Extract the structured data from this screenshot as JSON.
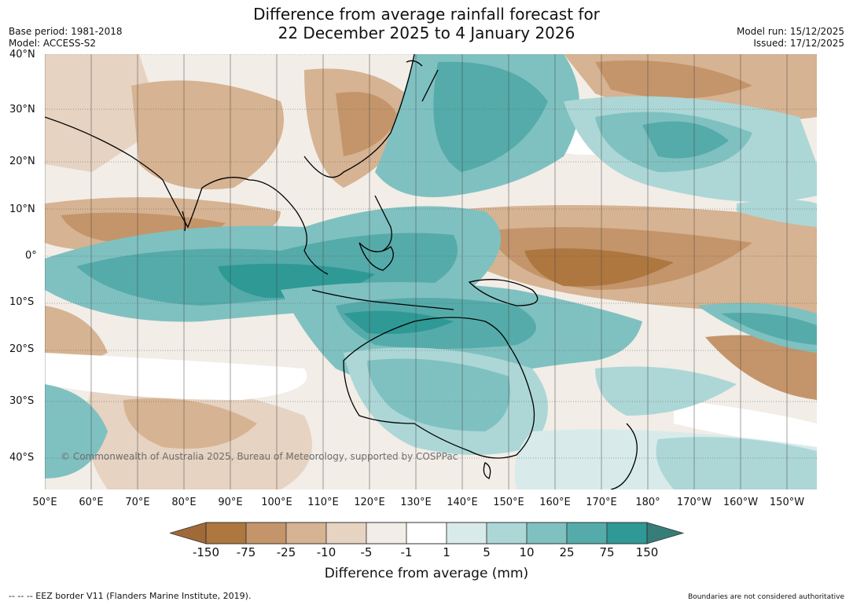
{
  "header": {
    "title_line1": "Difference from average rainfall forecast for",
    "title_line2": "22 December 2025 to 4 January 2026",
    "base_period": "Base period: 1981-2018",
    "model": "Model: ACCESS-S2",
    "model_run": "Model run: 15/12/2025",
    "issued": "Issued: 17/12/2025"
  },
  "map": {
    "lat_labels": [
      "40°N",
      "30°N",
      "20°N",
      "10°N",
      "0°",
      "10°S",
      "20°S",
      "30°S",
      "40°S"
    ],
    "lon_labels": [
      "50°E",
      "60°E",
      "70°E",
      "80°E",
      "90°E",
      "100°E",
      "110°E",
      "120°E",
      "130°E",
      "140°E",
      "150°E",
      "160°E",
      "170°E",
      "180°",
      "170°W",
      "160°W",
      "150°W"
    ],
    "copyright": "© Commonwealth of Australia 2025, Bureau of Meteorology, supported by COSPPac"
  },
  "legend": {
    "ticks": [
      "-150",
      "-75",
      "-25",
      "-10",
      "-5",
      "-1",
      "1",
      "5",
      "10",
      "25",
      "75",
      "150"
    ],
    "title": "Difference from average (mm)",
    "colors": [
      "#a06a38",
      "#ae7740",
      "#c4956a",
      "#d6b392",
      "#e6d3c2",
      "#f2ede7",
      "#ffffff",
      "#d8ebea",
      "#acd7d6",
      "#7fc1c0",
      "#55abaa",
      "#2e9995",
      "#367d79"
    ]
  },
  "footer": {
    "eez_note": "--  --  -- EEZ border V11 (Flanders Marine Institute, 2019).",
    "boundaries_note": "Boundaries are not considered authoritative"
  }
}
